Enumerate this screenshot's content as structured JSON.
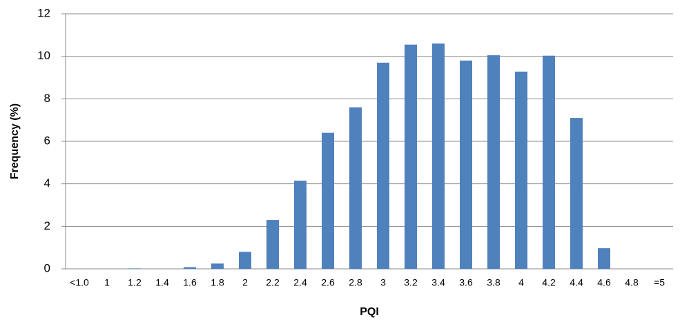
{
  "chart_data": {
    "type": "bar",
    "x_label": "PQI",
    "y_label": "Frequency (%)",
    "categories": [
      "<1.0",
      "1",
      "1.2",
      "1.4",
      "1.6",
      "1.8",
      "2",
      "2.2",
      "2.4",
      "2.6",
      "2.8",
      "3",
      "3.2",
      "3.4",
      "3.6",
      "3.8",
      "4",
      "4.2",
      "4.4",
      "4.6",
      "4.8",
      "=5"
    ],
    "values": [
      0,
      0,
      0.02,
      0,
      0.08,
      0.25,
      0.8,
      2.3,
      4.15,
      6.4,
      7.6,
      9.7,
      10.55,
      10.6,
      9.8,
      10.05,
      9.28,
      10.03,
      7.1,
      0.97,
      0,
      0
    ],
    "color": "#4f81bd",
    "ylim": [
      0,
      12
    ],
    "yticks": [
      0,
      2,
      4,
      6,
      8,
      10,
      12
    ],
    "grid": true
  }
}
